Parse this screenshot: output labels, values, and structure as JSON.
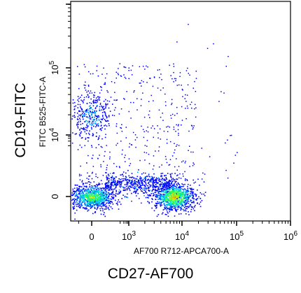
{
  "labels": {
    "outer_x": "CD27-AF700",
    "outer_y": "CD19-FITC",
    "inner_x": "AF700 R712-APCA700-A",
    "inner_y": "FITC B525-FITC-A"
  },
  "chart_data": {
    "type": "scatter",
    "style": "pseudocolor density dot plot",
    "scale": "biexponential",
    "x_axis": {
      "label": "AF700 R712-APCA700-A",
      "ticks": [
        {
          "value": 0,
          "label": "0"
        },
        {
          "value": 1000,
          "label": "10",
          "exp": "3"
        },
        {
          "value": 10000,
          "label": "10",
          "exp": "4"
        },
        {
          "value": 100000,
          "label": "10",
          "exp": "5"
        },
        {
          "value": 1000000,
          "label": "10",
          "exp": "6"
        }
      ],
      "range": [
        -300,
        1000000
      ]
    },
    "y_axis": {
      "label": "FITC B525-FITC-A",
      "ticks": [
        {
          "value": 0,
          "label": "0"
        },
        {
          "value": 10000,
          "label": "10",
          "exp": "4"
        },
        {
          "value": 100000,
          "label": "10",
          "exp": "5"
        }
      ],
      "range": [
        -400,
        1000000
      ]
    },
    "populations": [
      {
        "name": "",
        "x_center": 0,
        "y_center": 0,
        "relative_density": "high"
      },
      {
        "name": "",
        "x_center": 7000,
        "y_center": 0,
        "relative_density": "very high"
      },
      {
        "name": "",
        "x_center": 0,
        "y_center": 20000,
        "relative_density": "medium"
      }
    ],
    "density_colors": [
      "#0000ff",
      "#00a0ff",
      "#00e0c0",
      "#40ff40",
      "#e0e000",
      "#ff8000"
    ]
  }
}
